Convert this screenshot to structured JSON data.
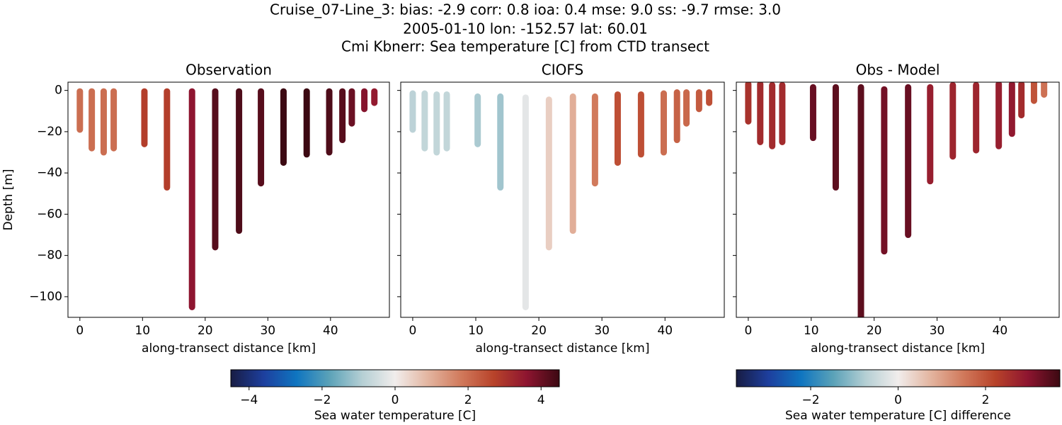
{
  "figure": {
    "title": [
      "Cruise_07-Line_3: bias: -2.9  corr: 0.8  ioa: 0.4  mse: 9.0  ss: -9.7  rmse: 3.0",
      "2005-01-10 lon: -152.57 lat: 60.01",
      "Cmi Kbnerr: Sea temperature [C] from CTD transect"
    ]
  },
  "colorbars": [
    {
      "label": "Sea water temperature [C]",
      "lim": [
        -4.5,
        4.5
      ],
      "ticks": [
        {
          "value": -4,
          "label": "−4"
        },
        {
          "value": -2,
          "label": "−2"
        },
        0,
        2,
        4
      ],
      "colormap": [
        "#181c43",
        "#1d3f9e",
        "#0f75c0",
        "#5ba2b8",
        "#b5cfd4",
        "#f1edec",
        "#e3b5a0",
        "#d17a5c",
        "#b8432a",
        "#8e1530",
        "#3c0912"
      ]
    },
    {
      "label": "Sea water temperature [C] difference",
      "lim": [
        -3.7,
        3.7
      ],
      "ticks": [
        {
          "value": -2,
          "label": "−2"
        },
        0,
        2
      ],
      "colormap": [
        "#181c43",
        "#1d3f9e",
        "#0f75c0",
        "#5ba2b8",
        "#b5cfd4",
        "#f1edec",
        "#e3b5a0",
        "#d17a5c",
        "#b8432a",
        "#8e1530",
        "#3c0912"
      ]
    }
  ],
  "chart_data": [
    {
      "type": "scatter",
      "title": "Observation",
      "xlabel": "along-transect distance [km]",
      "ylabel": "Depth [m]",
      "colorbar": 0,
      "ytick_labels": true,
      "xlim": [
        -1.9,
        49.4
      ],
      "ylim": [
        -110,
        4
      ],
      "xticks": [
        0,
        10,
        20,
        30,
        40
      ],
      "yticks": [
        0,
        {
          "value": -20,
          "label": "−20"
        },
        {
          "value": -40,
          "label": "−40"
        },
        {
          "value": -60,
          "label": "−60"
        },
        {
          "value": -80,
          "label": "−80"
        },
        {
          "value": -100,
          "label": "−100"
        }
      ],
      "x": [
        0,
        1.9,
        3.8,
        5.4,
        10.3,
        13.9,
        17.9,
        21.6,
        25.4,
        28.9,
        32.5,
        36.2,
        39.8,
        41.9,
        43.4,
        45.4,
        47.0
      ],
      "top": [
        -0.5,
        -0.5,
        -0.5,
        -0.5,
        -0.5,
        -0.5,
        -0.5,
        -0.5,
        -0.5,
        -0.5,
        -0.5,
        -0.5,
        -0.5,
        -0.5,
        -0.5,
        -0.5,
        -0.5
      ],
      "bottom": [
        -19,
        -28,
        -30,
        -28,
        -26,
        -47,
        -105,
        -76,
        -68,
        -45,
        -35,
        -31,
        -30,
        -24,
        -16,
        -9,
        -6
      ],
      "values": [
        2,
        2,
        2,
        2,
        2.8,
        2.8,
        3.6,
        4.2,
        4.3,
        4.2,
        4.5,
        4.5,
        4.3,
        4.2,
        4,
        3.7,
        3.5
      ]
    },
    {
      "type": "scatter",
      "title": "CIOFS",
      "xlabel": "along-transect distance [km]",
      "colorbar": 0,
      "ytick_labels": false,
      "xlim": [
        -1.9,
        49.4
      ],
      "ylim": [
        -110,
        4
      ],
      "xticks": [
        0,
        10,
        20,
        30,
        40
      ],
      "yticks": [
        0,
        -20,
        -40,
        -60,
        -80,
        -100
      ],
      "x": [
        0,
        1.9,
        3.8,
        5.4,
        10.3,
        13.9,
        17.9,
        21.6,
        25.4,
        28.9,
        32.5,
        36.2,
        39.8,
        41.9,
        43.4,
        45.4,
        47.0
      ],
      "top": [
        -1.5,
        -1.5,
        -2,
        -2,
        -3,
        -3,
        -3.5,
        -4.5,
        -3,
        -3,
        -2,
        -2,
        -1.5,
        -1,
        -1,
        -1,
        -1
      ],
      "bottom": [
        -19,
        -28,
        -30,
        -28,
        -26,
        -47,
        -105,
        -76,
        -68,
        -45,
        -35,
        -31,
        -30,
        -24,
        -16,
        -9,
        -6
      ],
      "values": [
        -0.8,
        -0.7,
        -0.7,
        -0.7,
        -1,
        -1.1,
        -0.2,
        0.5,
        1,
        1.8,
        2.5,
        2.5,
        2,
        2.2,
        2.1,
        2.3,
        2.5
      ]
    },
    {
      "type": "scatter",
      "title": "Obs - Model",
      "xlabel": "along-transect distance [km]",
      "colorbar": 1,
      "ytick_labels": false,
      "xlim": [
        -1.9,
        49.4
      ],
      "ylim": [
        -110,
        4
      ],
      "xticks": [
        0,
        10,
        20,
        30,
        40
      ],
      "yticks": [
        0,
        -20,
        -40,
        -60,
        -80,
        -100
      ],
      "x": [
        0,
        1.9,
        3.8,
        5.4,
        10.3,
        13.9,
        17.9,
        21.6,
        25.4,
        28.9,
        32.5,
        36.2,
        39.8,
        41.9,
        43.4,
        45.4,
        47.0
      ],
      "top": [
        3,
        3,
        2.5,
        2.5,
        1.5,
        1.5,
        1.5,
        0.5,
        1.5,
        1.5,
        2.5,
        2.5,
        3,
        3,
        3,
        4,
        4
      ],
      "bottom": [
        -15,
        -25,
        -27,
        -25,
        -23,
        -47,
        -110,
        -78,
        -70,
        -44,
        -32,
        -29,
        -27,
        -21,
        -12,
        -5,
        -2
      ],
      "values": [
        2.5,
        2.6,
        2.6,
        2.6,
        3.3,
        3.4,
        3.4,
        3.2,
        3.3,
        2.8,
        2.7,
        2.7,
        2.8,
        2.9,
        2.6,
        2.0,
        1.6
      ]
    }
  ]
}
